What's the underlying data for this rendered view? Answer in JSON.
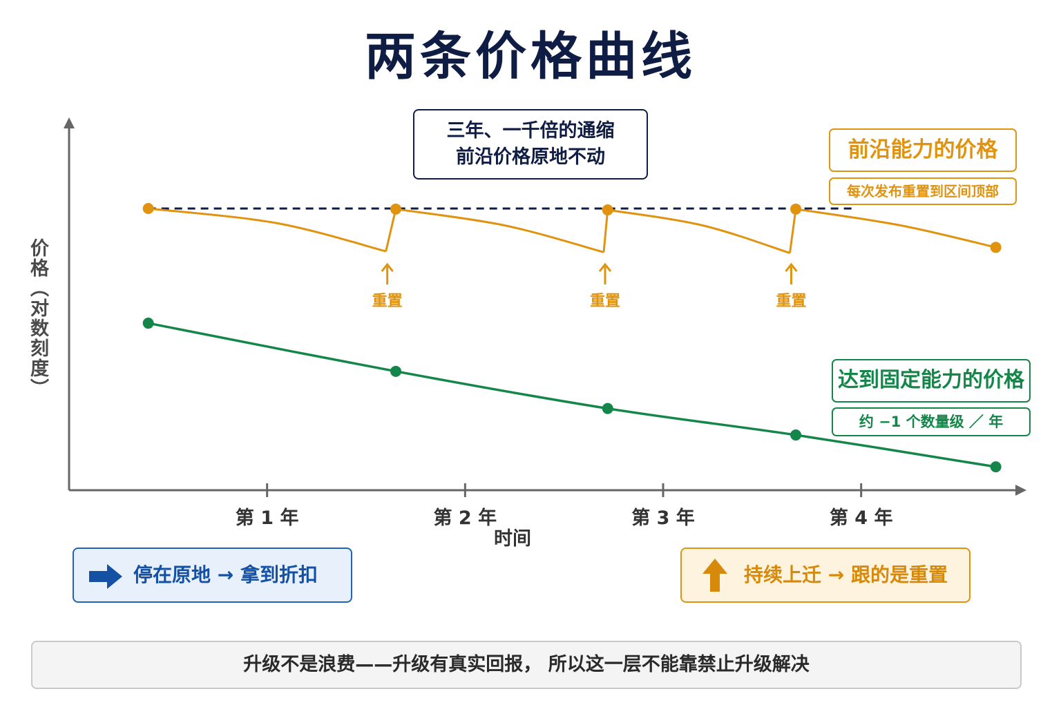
{
  "title": "两条价格曲线",
  "note": {
    "line1": "三年、一千倍的通缩",
    "line2": "前沿价格原地不动"
  },
  "frontier": {
    "label": "前沿能力的价格",
    "sublabel": "每次发布重置到区间顶部",
    "reset_label": "重置"
  },
  "fixed": {
    "label": "达到固定能力的价格",
    "sublabel": "约 −1 个数量级 ／ 年"
  },
  "legend": {
    "left": {
      "text": "停在原地 → 拿到折扣",
      "icon": "right-arrow-icon"
    },
    "right": {
      "text": "持续上迁 →  跟的是重置",
      "icon": "up-arrow-icon"
    }
  },
  "footer": "升级不是浪费——升级有真实回报， 所以这一层不能靠禁止升级解决",
  "colors": {
    "frontier": "#e0930f",
    "fixed": "#14864a",
    "dashed": "#0f1d45",
    "axis": "#666666"
  },
  "chart_data": {
    "type": "line",
    "xlabel": "时间",
    "ylabel": "价格（对数刻度）",
    "y_scale": "log",
    "x_ticks": [
      {
        "x": 1,
        "label": "第 1 年"
      },
      {
        "x": 2,
        "label": "第 2 年"
      },
      {
        "x": 3,
        "label": "第 3 年"
      },
      {
        "x": 4,
        "label": "第 4 年"
      }
    ],
    "xlim": [
      0.0,
      4.8
    ],
    "y_relative_range": [
      0,
      1
    ],
    "series": [
      {
        "name": "前沿能力的价格",
        "color": "#e0930f",
        "segments": [
          {
            "x": [
              0.4,
              1.05,
              1.6
            ],
            "y": [
              1.0,
              0.948,
              0.848
            ]
          },
          {
            "x": [
              1.6,
              1.65
            ],
            "y": [
              0.848,
              0.998
            ]
          },
          {
            "x": [
              1.65,
              2.2,
              2.7
            ],
            "y": [
              0.998,
              0.94,
              0.845
            ]
          },
          {
            "x": [
              2.7,
              2.72
            ],
            "y": [
              0.845,
              0.995
            ]
          },
          {
            "x": [
              2.72,
              3.2,
              3.64
            ],
            "y": [
              0.995,
              0.94,
              0.842
            ]
          },
          {
            "x": [
              3.64,
              3.67
            ],
            "y": [
              0.842,
              0.998
            ]
          },
          {
            "x": [
              3.67,
              4.2,
              4.68
            ],
            "y": [
              0.998,
              0.94,
              0.862
            ]
          }
        ],
        "markers": {
          "x": [
            0.4,
            1.65,
            2.72,
            3.67,
            4.68
          ],
          "y": [
            1.0,
            0.998,
            0.995,
            0.998,
            0.862
          ]
        },
        "resets": [
          1.6,
          2.7,
          3.64
        ]
      },
      {
        "name": "达到固定能力的价格",
        "color": "#14864a",
        "x": [
          0.4,
          1.65,
          2.72,
          3.67,
          4.68
        ],
        "y": [
          0.593,
          0.422,
          0.29,
          0.196,
          0.083
        ]
      }
    ],
    "reference_line": {
      "style": "dashed",
      "y": 1.0,
      "x_range": [
        0.4,
        3.97
      ]
    }
  }
}
